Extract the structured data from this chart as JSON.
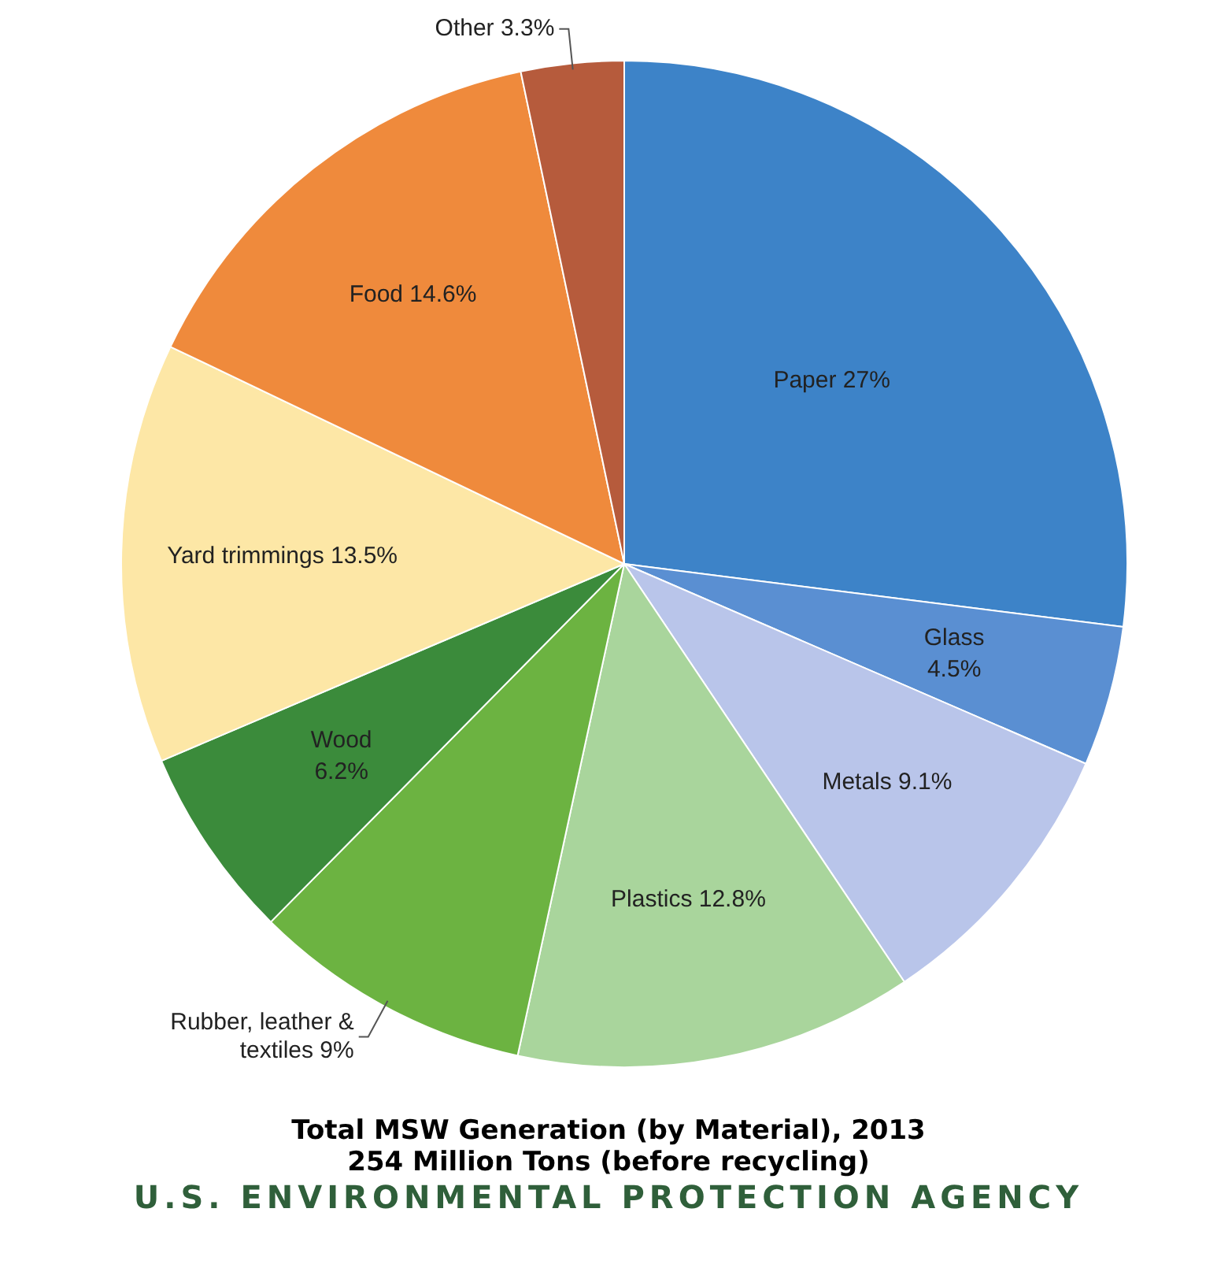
{
  "chart_data": {
    "type": "pie",
    "title": "Total MSW Generation (by Material), 2013",
    "subtitle": "254 Million Tons (before recycling)",
    "annotations": [
      "U.S. ENVIRONMENTAL PROTECTION AGENCY"
    ],
    "categories": [
      "Paper",
      "Glass",
      "Metals",
      "Plastics",
      "Rubber, leather & textiles",
      "Wood",
      "Yard trimmings",
      "Food",
      "Other"
    ],
    "values": [
      27,
      4.5,
      9.1,
      12.8,
      9,
      6.2,
      13.5,
      14.6,
      3.3
    ],
    "value_labels": [
      "27%",
      "4.5%",
      "9.1%",
      "12.8%",
      "9%",
      "6.2%",
      "13.5%",
      "14.6%",
      "3.3%"
    ],
    "colors": [
      "#3d83c8",
      "#5a8fd2",
      "#b9c5ea",
      "#a9d59c",
      "#6cb341",
      "#3b8b3b",
      "#fde7a6",
      "#ef8a3c",
      "#b65b3c"
    ],
    "legend": false
  }
}
